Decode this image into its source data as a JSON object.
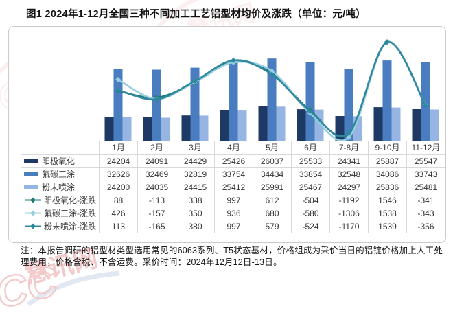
{
  "title": "图1  2024年1-12月全国三种不同加工工艺铝型材均价及涨跌（单位：元/吨）",
  "note": "注：本报告调研的铝型材类型选用常见的6063系列、T5状态基材，价格组成为采价当日的铝锭价格加上人工处理费用，价格含税、不含运费。采价时间：2024年12月12日-13日。",
  "watermark": {
    "brand": "ICC",
    "site": "慧讯网",
    "color": "#d94f4f"
  },
  "chart_data": {
    "type": "bar+line",
    "categories": [
      "1月",
      "2月",
      "3月",
      "4月",
      "5月",
      "6月",
      "7-8月",
      "9-10月",
      "11-12月"
    ],
    "bar_series": [
      {
        "name": "阳极氧化",
        "color": "#1E3A64",
        "values": [
          24204,
          24091,
          24429,
          25426,
          26037,
          25533,
          24341,
          25887,
          25547
        ]
      },
      {
        "name": "氟碳三涂",
        "color": "#4A7CC0",
        "values": [
          32626,
          32469,
          32819,
          33754,
          34434,
          33854,
          32548,
          34086,
          33743
        ]
      },
      {
        "name": "粉末喷涂",
        "color": "#96B5E2",
        "values": [
          24200,
          24035,
          24415,
          25412,
          25991,
          25467,
          24297,
          25836,
          25481
        ]
      }
    ],
    "line_series": [
      {
        "name": "阳极氧化-涨跌",
        "color": "#1C7A72",
        "values": [
          88,
          -113,
          338,
          997,
          612,
          -504,
          -1192,
          1546,
          -341
        ]
      },
      {
        "name": "氟碳三涂-涨跌",
        "color": "#93CFDF",
        "values": [
          426,
          -157,
          350,
          936,
          680,
          -580,
          -1306,
          1538,
          -343
        ]
      },
      {
        "name": "粉末喷涂-涨跌",
        "color": "#2F87A0",
        "values": [
          113,
          -165,
          380,
          997,
          579,
          -524,
          -1170,
          1539,
          -356
        ]
      }
    ],
    "bar_axis": {
      "min": 20000,
      "max": 40000,
      "visible": false
    },
    "line_axis": {
      "min": -1400,
      "max": 2000,
      "visible": false
    },
    "grid": false,
    "legend_position": "table-left-column"
  }
}
